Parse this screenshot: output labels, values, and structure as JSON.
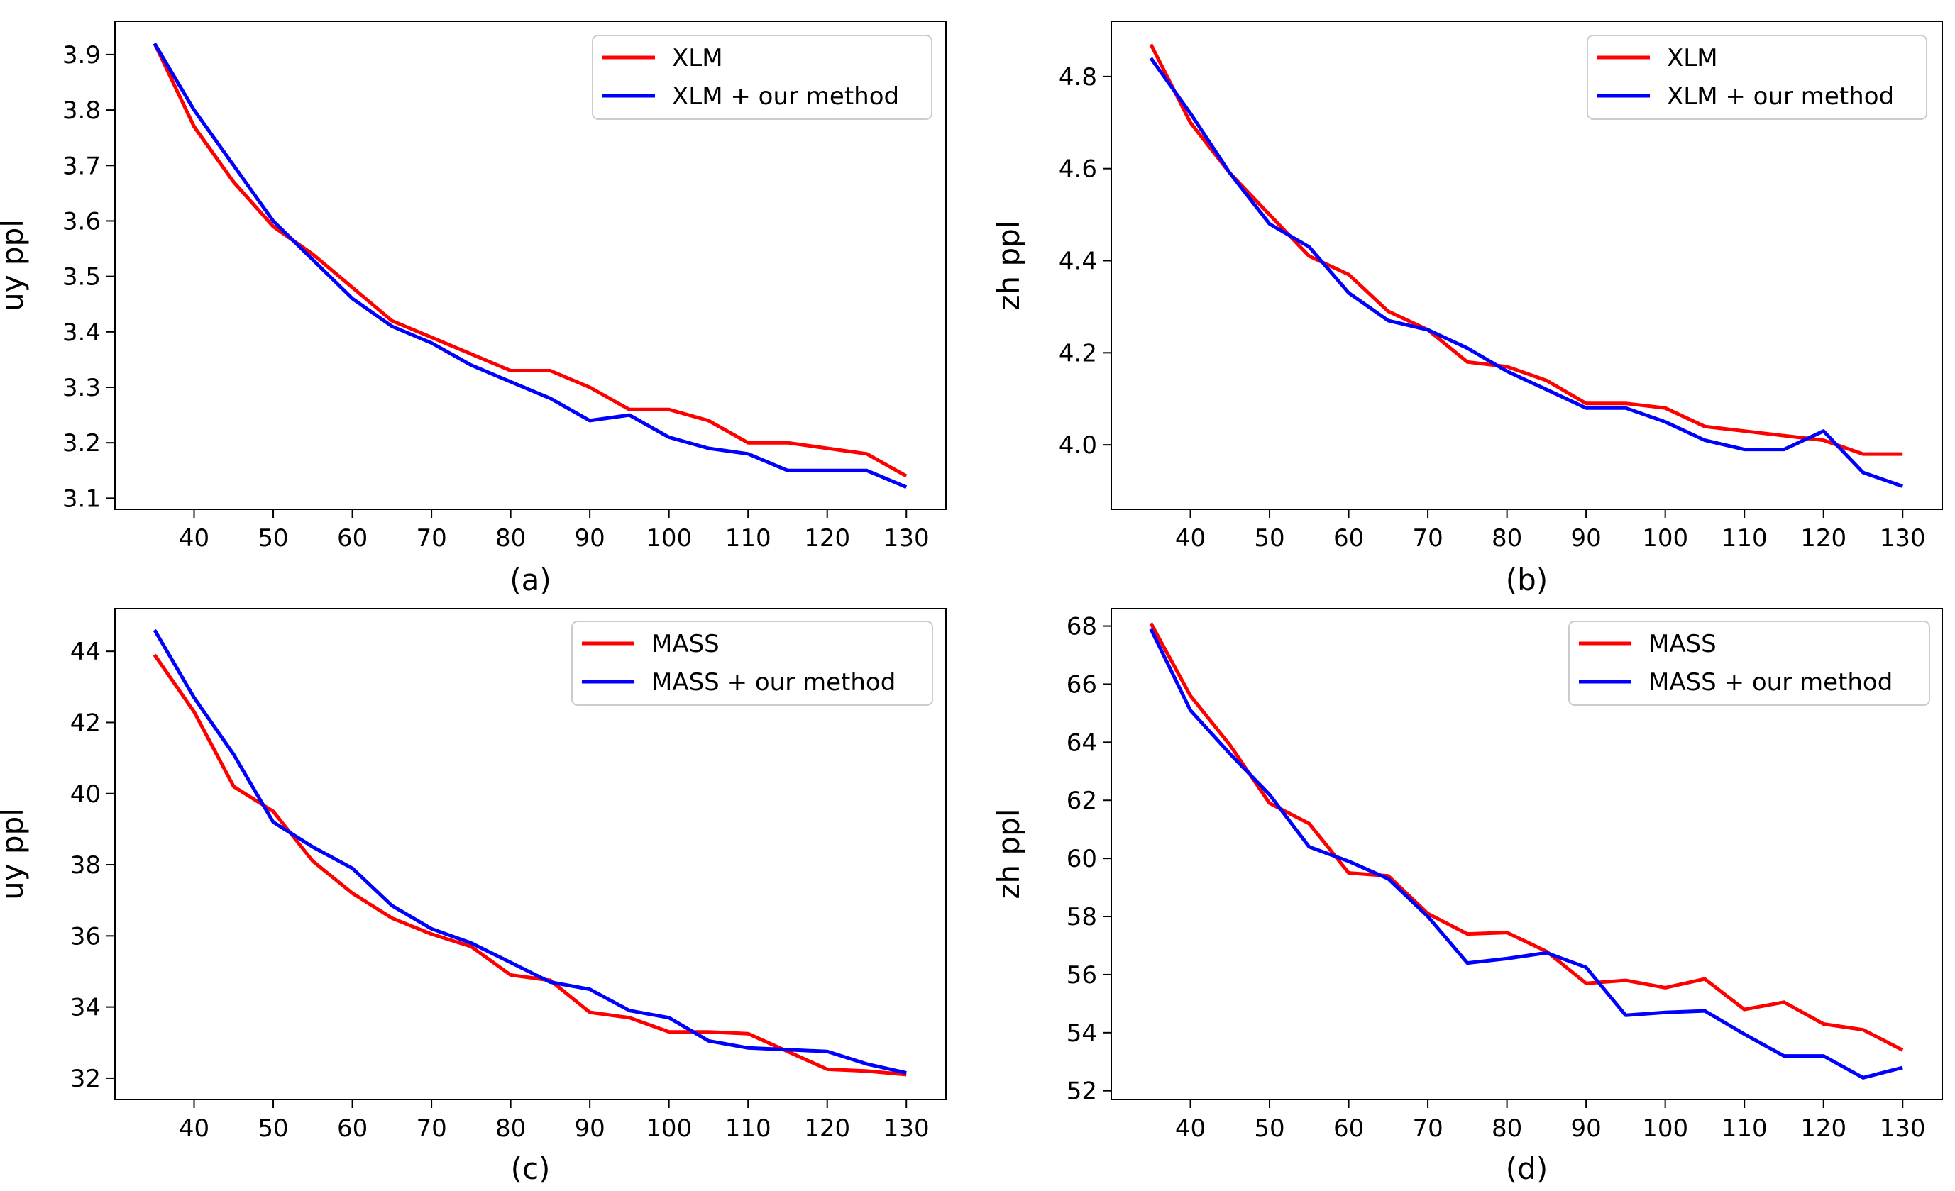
{
  "chart_data": [
    {
      "id": "a",
      "type": "line",
      "caption": "(a)",
      "xlabel": "",
      "ylabel": "uy ppl",
      "xlim": [
        30,
        135
      ],
      "ylim": [
        3.08,
        3.96
      ],
      "xticks": [
        40,
        50,
        60,
        70,
        80,
        90,
        100,
        110,
        120,
        130
      ],
      "yticks": [
        3.1,
        3.2,
        3.3,
        3.4,
        3.5,
        3.6,
        3.7,
        3.8,
        3.9
      ],
      "ytick_decimals": 1,
      "legend_position": "top-right",
      "x": [
        35,
        40,
        45,
        50,
        55,
        60,
        65,
        70,
        75,
        80,
        85,
        90,
        95,
        100,
        105,
        110,
        115,
        120,
        125,
        130
      ],
      "series": [
        {
          "name": "XLM",
          "color": "#ff0000",
          "values": [
            3.92,
            3.77,
            3.67,
            3.59,
            3.54,
            3.48,
            3.42,
            3.39,
            3.36,
            3.33,
            3.33,
            3.3,
            3.26,
            3.26,
            3.24,
            3.2,
            3.2,
            3.19,
            3.18,
            3.14
          ]
        },
        {
          "name": "XLM + our method",
          "color": "#0000ff",
          "values": [
            3.92,
            3.8,
            3.7,
            3.6,
            3.53,
            3.46,
            3.41,
            3.38,
            3.34,
            3.31,
            3.28,
            3.24,
            3.25,
            3.21,
            3.19,
            3.18,
            3.15,
            3.15,
            3.15,
            3.12
          ]
        }
      ]
    },
    {
      "id": "b",
      "type": "line",
      "caption": "(b)",
      "xlabel": "",
      "ylabel": "zh ppl",
      "xlim": [
        30,
        135
      ],
      "ylim": [
        3.86,
        4.92
      ],
      "xticks": [
        40,
        50,
        60,
        70,
        80,
        90,
        100,
        110,
        120,
        130
      ],
      "yticks": [
        4.0,
        4.2,
        4.4,
        4.6,
        4.8
      ],
      "ytick_decimals": 1,
      "legend_position": "top-right",
      "x": [
        35,
        40,
        45,
        50,
        55,
        60,
        65,
        70,
        75,
        80,
        85,
        90,
        95,
        100,
        105,
        110,
        115,
        120,
        125,
        130
      ],
      "series": [
        {
          "name": "XLM",
          "color": "#ff0000",
          "values": [
            4.87,
            4.7,
            4.59,
            4.5,
            4.41,
            4.37,
            4.29,
            4.25,
            4.18,
            4.17,
            4.14,
            4.09,
            4.09,
            4.08,
            4.04,
            4.03,
            4.02,
            4.01,
            3.98,
            3.98
          ]
        },
        {
          "name": "XLM + our method",
          "color": "#0000ff",
          "values": [
            4.84,
            4.72,
            4.59,
            4.48,
            4.43,
            4.33,
            4.27,
            4.25,
            4.21,
            4.16,
            4.12,
            4.08,
            4.08,
            4.05,
            4.01,
            3.99,
            3.99,
            4.03,
            3.94,
            3.91
          ]
        }
      ]
    },
    {
      "id": "c",
      "type": "line",
      "caption": "(c)",
      "xlabel": "",
      "ylabel": "uy ppl",
      "xlim": [
        30,
        135
      ],
      "ylim": [
        31.4,
        45.2
      ],
      "xticks": [
        40,
        50,
        60,
        70,
        80,
        90,
        100,
        110,
        120,
        130
      ],
      "yticks": [
        32,
        34,
        36,
        38,
        40,
        42,
        44
      ],
      "ytick_decimals": 0,
      "legend_position": "top-right",
      "x": [
        35,
        40,
        45,
        50,
        55,
        60,
        65,
        70,
        75,
        80,
        85,
        90,
        95,
        100,
        105,
        110,
        115,
        120,
        125,
        130
      ],
      "series": [
        {
          "name": "MASS",
          "color": "#ff0000",
          "values": [
            43.9,
            42.3,
            40.2,
            39.5,
            38.1,
            37.2,
            36.5,
            36.05,
            35.7,
            34.9,
            34.75,
            33.85,
            33.7,
            33.3,
            33.3,
            33.25,
            32.75,
            32.25,
            32.2,
            32.1
          ]
        },
        {
          "name": "MASS + our method",
          "color": "#0000ff",
          "values": [
            44.6,
            42.7,
            41.1,
            39.2,
            38.5,
            37.9,
            36.85,
            36.2,
            35.8,
            35.25,
            34.7,
            34.5,
            33.9,
            33.7,
            33.05,
            32.85,
            32.8,
            32.75,
            32.4,
            32.15
          ]
        }
      ]
    },
    {
      "id": "d",
      "type": "line",
      "caption": "(d)",
      "xlabel": "",
      "ylabel": "zh ppl",
      "xlim": [
        30,
        135
      ],
      "ylim": [
        51.7,
        68.6
      ],
      "xticks": [
        40,
        50,
        60,
        70,
        80,
        90,
        100,
        110,
        120,
        130
      ],
      "yticks": [
        52,
        54,
        56,
        58,
        60,
        62,
        64,
        66,
        68
      ],
      "ytick_decimals": 0,
      "legend_position": "top-right",
      "x": [
        35,
        40,
        45,
        50,
        55,
        60,
        65,
        70,
        75,
        80,
        85,
        90,
        95,
        100,
        105,
        110,
        115,
        120,
        125,
        130
      ],
      "series": [
        {
          "name": "MASS",
          "color": "#ff0000",
          "values": [
            68.1,
            65.6,
            63.9,
            61.9,
            61.2,
            59.5,
            59.4,
            58.1,
            57.4,
            57.45,
            56.8,
            55.7,
            55.8,
            55.55,
            55.85,
            54.8,
            55.05,
            54.3,
            54.1,
            53.4
          ]
        },
        {
          "name": "MASS + our method",
          "color": "#0000ff",
          "values": [
            67.9,
            65.1,
            63.6,
            62.2,
            60.4,
            59.9,
            59.3,
            58.0,
            56.4,
            56.55,
            56.75,
            56.25,
            54.6,
            54.7,
            54.75,
            53.95,
            53.2,
            53.2,
            52.45,
            52.8
          ]
        }
      ]
    }
  ]
}
